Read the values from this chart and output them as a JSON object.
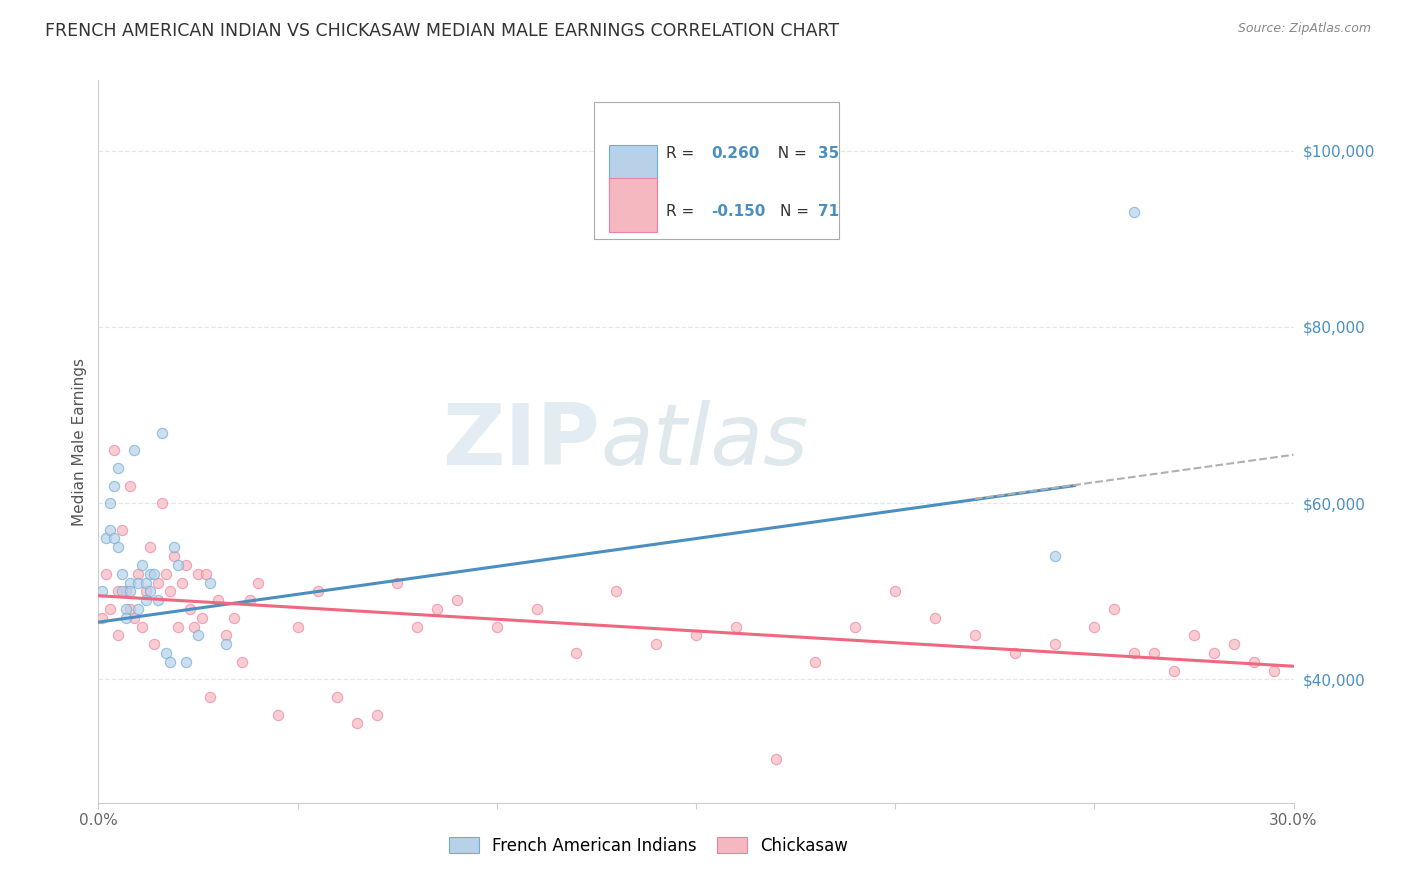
{
  "title": "FRENCH AMERICAN INDIAN VS CHICKASAW MEDIAN MALE EARNINGS CORRELATION CHART",
  "source": "Source: ZipAtlas.com",
  "ylabel": "Median Male Earnings",
  "yticks": [
    40000,
    60000,
    80000,
    100000
  ],
  "ytick_labels": [
    "$40,000",
    "$60,000",
    "$80,000",
    "$100,000"
  ],
  "xlim": [
    0.0,
    0.3
  ],
  "ylim": [
    26000,
    108000
  ],
  "watermark_zip": "ZIP",
  "watermark_atlas": "atlas",
  "legend_r_blue": "R =  0.260",
  "legend_n_blue": "N = 35",
  "legend_r_pink": "R = -0.150",
  "legend_n_pink": "N = 71",
  "legend_label_blue": "French American Indians",
  "legend_label_pink": "Chickasaw",
  "blue_fill": "#b8d0e8",
  "pink_fill": "#f5b8c0",
  "blue_edge": "#6aaed6",
  "pink_edge": "#f080a0",
  "line_blue": "#4a8fc0",
  "line_pink": "#f06880",
  "line_dashed_color": "#b0b0b0",
  "tick_color_blue": "#4a8fc0",
  "blue_scatter_x": [
    0.001,
    0.002,
    0.003,
    0.003,
    0.004,
    0.004,
    0.005,
    0.005,
    0.006,
    0.006,
    0.007,
    0.007,
    0.008,
    0.008,
    0.009,
    0.01,
    0.01,
    0.011,
    0.012,
    0.012,
    0.013,
    0.013,
    0.014,
    0.015,
    0.016,
    0.017,
    0.018,
    0.019,
    0.02,
    0.022,
    0.025,
    0.028,
    0.032,
    0.24,
    0.26
  ],
  "blue_scatter_y": [
    50000,
    56000,
    60000,
    57000,
    62000,
    56000,
    64000,
    55000,
    50000,
    52000,
    48000,
    47000,
    51000,
    50000,
    66000,
    51000,
    48000,
    53000,
    49000,
    51000,
    52000,
    50000,
    52000,
    49000,
    68000,
    43000,
    42000,
    55000,
    53000,
    42000,
    45000,
    51000,
    44000,
    54000,
    93000
  ],
  "pink_scatter_x": [
    0.001,
    0.002,
    0.003,
    0.004,
    0.005,
    0.005,
    0.006,
    0.007,
    0.008,
    0.008,
    0.009,
    0.01,
    0.011,
    0.012,
    0.013,
    0.014,
    0.015,
    0.016,
    0.017,
    0.018,
    0.019,
    0.02,
    0.021,
    0.022,
    0.023,
    0.024,
    0.025,
    0.026,
    0.027,
    0.028,
    0.03,
    0.032,
    0.034,
    0.036,
    0.038,
    0.04,
    0.045,
    0.05,
    0.055,
    0.06,
    0.065,
    0.07,
    0.075,
    0.08,
    0.085,
    0.09,
    0.1,
    0.11,
    0.12,
    0.13,
    0.14,
    0.15,
    0.16,
    0.17,
    0.18,
    0.19,
    0.2,
    0.21,
    0.22,
    0.23,
    0.24,
    0.25,
    0.255,
    0.26,
    0.265,
    0.27,
    0.275,
    0.28,
    0.285,
    0.29,
    0.295
  ],
  "pink_scatter_y": [
    47000,
    52000,
    48000,
    66000,
    50000,
    45000,
    57000,
    50000,
    48000,
    62000,
    47000,
    52000,
    46000,
    50000,
    55000,
    44000,
    51000,
    60000,
    52000,
    50000,
    54000,
    46000,
    51000,
    53000,
    48000,
    46000,
    52000,
    47000,
    52000,
    38000,
    49000,
    45000,
    47000,
    42000,
    49000,
    51000,
    36000,
    46000,
    50000,
    38000,
    35000,
    36000,
    51000,
    46000,
    48000,
    49000,
    46000,
    48000,
    43000,
    50000,
    44000,
    45000,
    46000,
    31000,
    42000,
    46000,
    50000,
    47000,
    45000,
    43000,
    44000,
    46000,
    48000,
    43000,
    43000,
    41000,
    45000,
    43000,
    44000,
    42000,
    41000
  ],
  "blue_line_x": [
    0.0,
    0.245
  ],
  "blue_line_y": [
    46500,
    62000
  ],
  "pink_line_x": [
    0.0,
    0.3
  ],
  "pink_line_y": [
    49500,
    41500
  ],
  "dashed_line_x": [
    0.22,
    0.3
  ],
  "dashed_line_y": [
    60500,
    65500
  ],
  "background_color": "#ffffff",
  "grid_color": "#dde8f0",
  "title_fontsize": 12.5,
  "axis_label_fontsize": 11,
  "tick_fontsize": 11,
  "scatter_size": 55,
  "scatter_alpha": 0.7
}
